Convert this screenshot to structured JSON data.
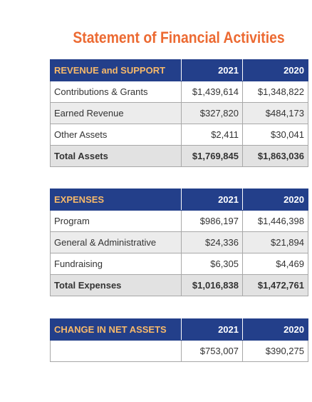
{
  "title": "Statement of Financial Activities",
  "tables": [
    {
      "header": [
        "REVENUE and SUPPORT",
        "2021",
        "2020"
      ],
      "rows": [
        {
          "label": "Contributions & Grants",
          "values": [
            "$1,439,614",
            "$1,348,822"
          ]
        },
        {
          "label": "Earned Revenue",
          "values": [
            "$327,820",
            "$484,173"
          ]
        },
        {
          "label": "Other Assets",
          "values": [
            "$2,411",
            "$30,041"
          ]
        }
      ],
      "total": {
        "label": "Total Assets",
        "values": [
          "$1,769,845",
          "$1,863,036"
        ]
      }
    },
    {
      "header": [
        "EXPENSES",
        "2021",
        "2020"
      ],
      "rows": [
        {
          "label": "Program",
          "values": [
            "$986,197",
            "$1,446,398"
          ]
        },
        {
          "label": "General & Administrative",
          "values": [
            "$24,336",
            "$21,894"
          ]
        },
        {
          "label": "Fundraising",
          "values": [
            "$6,305",
            "$4,469"
          ]
        }
      ],
      "total": {
        "label": "Total Expenses",
        "values": [
          "$1,016,838",
          "$1,472,761"
        ]
      }
    },
    {
      "header": [
        "CHANGE IN NET ASSETS",
        "2021",
        "2020"
      ],
      "rows": [
        {
          "values": [
            "$753,007",
            "$390,275"
          ]
        }
      ]
    }
  ]
}
